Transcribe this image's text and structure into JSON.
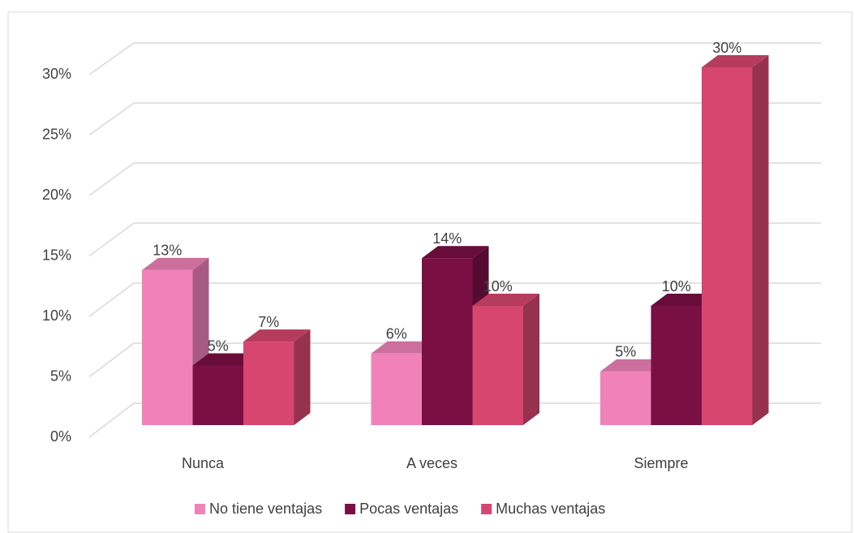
{
  "chart_data": {
    "type": "bar3d",
    "categories": [
      "Nunca",
      "A veces",
      "Siempre"
    ],
    "series": [
      {
        "name": "No tiene ventajas",
        "color": "#f082b9",
        "values": [
          13,
          6,
          4.5
        ],
        "value_labels": [
          "13%",
          "6%",
          "5%"
        ]
      },
      {
        "name": "Pocas ventajas",
        "color": "#7a0f44",
        "values": [
          5,
          14,
          10
        ],
        "value_labels": [
          "5%",
          "14%",
          "10%"
        ]
      },
      {
        "name": "Muchas ventajas",
        "color": "#d6466f",
        "values": [
          7,
          10,
          30
        ],
        "value_labels": [
          "7%",
          "10%",
          "30%"
        ]
      }
    ],
    "ylim": [
      0,
      30
    ],
    "yticks": [
      {
        "value": 0,
        "label": "0%"
      },
      {
        "value": 5,
        "label": "5%"
      },
      {
        "value": 10,
        "label": "10%"
      },
      {
        "value": 15,
        "label": "15%"
      },
      {
        "value": 20,
        "label": "20%"
      },
      {
        "value": 25,
        "label": "25%"
      },
      {
        "value": 30,
        "label": "30%"
      }
    ],
    "grid": true,
    "legend": "bottom"
  }
}
